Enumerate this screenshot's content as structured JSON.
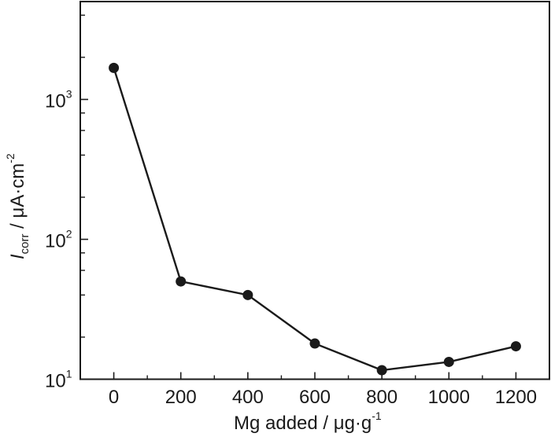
{
  "chart_data": {
    "type": "line",
    "title": "",
    "xlabel": "Mg added / μg·g⁻¹",
    "xlabel_parts": {
      "main": "Mg added / μg·g",
      "sup": "-1"
    },
    "ylabel": "I_corr / μA·cm⁻²",
    "ylabel_parts": {
      "symbol": "I",
      "sub": "corr",
      "rest": " / μA·cm",
      "sup": "-2"
    },
    "x": [
      0,
      200,
      400,
      600,
      800,
      1000,
      1200
    ],
    "series": [
      {
        "name": "Icorr",
        "values": [
          1680,
          50,
          40,
          18,
          11.6,
          13.3,
          17.2
        ],
        "marker": "circle",
        "color": "#1a1a1a"
      }
    ],
    "xlim": [
      -100,
      1300
    ],
    "ylim": [
      10,
      5000
    ],
    "yscale": "log",
    "x_ticks": [
      "0",
      "200",
      "400",
      "600",
      "800",
      "1000",
      "1200"
    ],
    "x_tick_values": [
      0,
      200,
      400,
      600,
      800,
      1000,
      1200
    ],
    "x_minor_ticks": [
      100,
      300,
      500,
      700,
      900,
      1100
    ],
    "y_ticks": [
      {
        "value": 10,
        "base": "10",
        "exp": "1"
      },
      {
        "value": 100,
        "base": "10",
        "exp": "2"
      },
      {
        "value": 1000,
        "base": "10",
        "exp": "3"
      }
    ],
    "y_minor_ticks": [
      20,
      40,
      60,
      80,
      200,
      400,
      600,
      800,
      2000,
      4000
    ],
    "grid": false,
    "legend": null
  }
}
